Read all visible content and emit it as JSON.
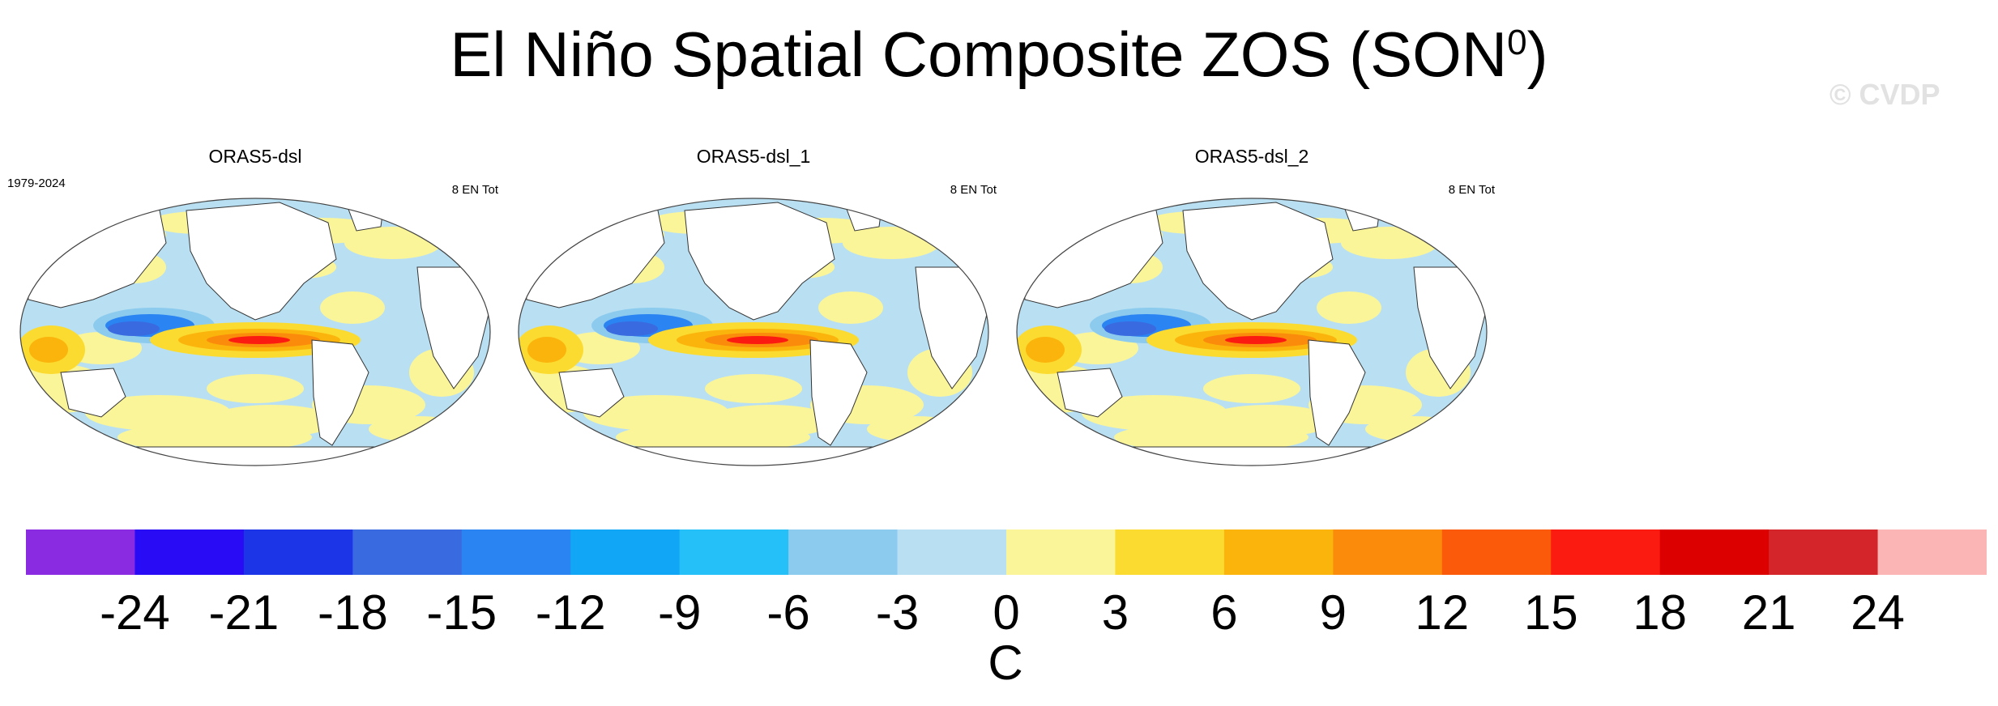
{
  "title": {
    "main": "El Niño Spatial Composite ZOS (SON",
    "superscript": "0",
    "close": ")"
  },
  "watermark": "© CVDP",
  "panels": [
    {
      "title": "ORAS5-dsl",
      "left_label": "1979-2024",
      "right_label": "8 EN Tot"
    },
    {
      "title": "ORAS5-dsl_1",
      "left_label": "",
      "right_label": "8 EN Tot"
    },
    {
      "title": "ORAS5-dsl_2",
      "left_label": "",
      "right_label": "8 EN Tot"
    }
  ],
  "colorbar": {
    "levels": [
      "-24",
      "-21",
      "-18",
      "-15",
      "-12",
      "-9",
      "-6",
      "-3",
      "0",
      "3",
      "6",
      "9",
      "12",
      "15",
      "18",
      "21",
      "24"
    ],
    "colors": [
      "#8a2be2",
      "#2a0bf5",
      "#1c35e6",
      "#3a6ae0",
      "#2a84f2",
      "#12a6f6",
      "#26c0f9",
      "#8ccbee",
      "#b9e0f2",
      "#fbf59a",
      "#fbdb30",
      "#fbb40c",
      "#fb8c0b",
      "#fb5a0b",
      "#fb1b10",
      "#dd0000",
      "#d4262a",
      "#fbb5b5"
    ],
    "unit": "C"
  }
}
